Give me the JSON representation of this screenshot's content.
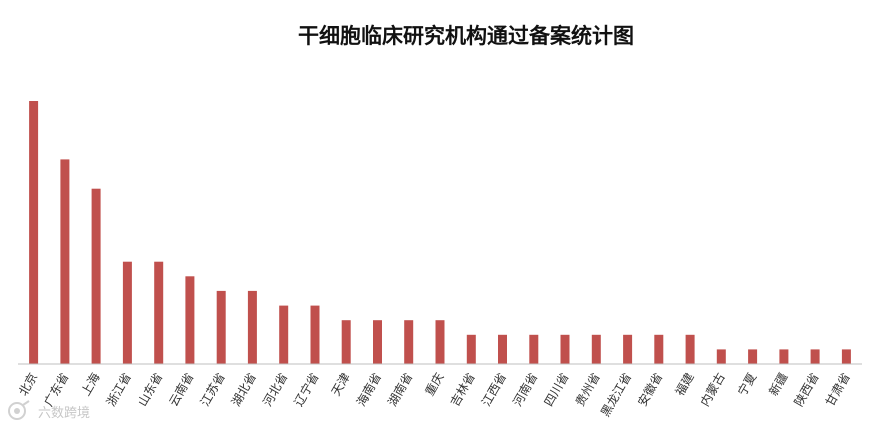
{
  "chart_data": {
    "type": "bar",
    "title": "干细胞临床研究机构通过备案统计图",
    "xlabel": "",
    "ylabel": "",
    "categories": [
      "北京",
      "广东省",
      "上海",
      "浙江省",
      "山东省",
      "云南省",
      "江苏省",
      "湖北省",
      "河北省",
      "辽宁省",
      "天津",
      "海南省",
      "湖南省",
      "重庆",
      "吉林省",
      "江西省",
      "河南省",
      "四川省",
      "贵州省",
      "黑龙江省",
      "安徽省",
      "福建",
      "内蒙古",
      "宁夏",
      "新疆",
      "陕西省",
      "甘肃省"
    ],
    "values": [
      18,
      14,
      12,
      7,
      7,
      6,
      5,
      5,
      4,
      4,
      3,
      3,
      3,
      3,
      2,
      2,
      2,
      2,
      2,
      2,
      2,
      2,
      1,
      1,
      1,
      1,
      1
    ],
    "ylim": [
      0,
      18
    ],
    "grid": false,
    "legend": "none",
    "bar_color": "#c0504d",
    "axis_color": "#bfbfbf"
  },
  "watermark": {
    "icon": "logo-icon",
    "text": "六数跨境"
  }
}
